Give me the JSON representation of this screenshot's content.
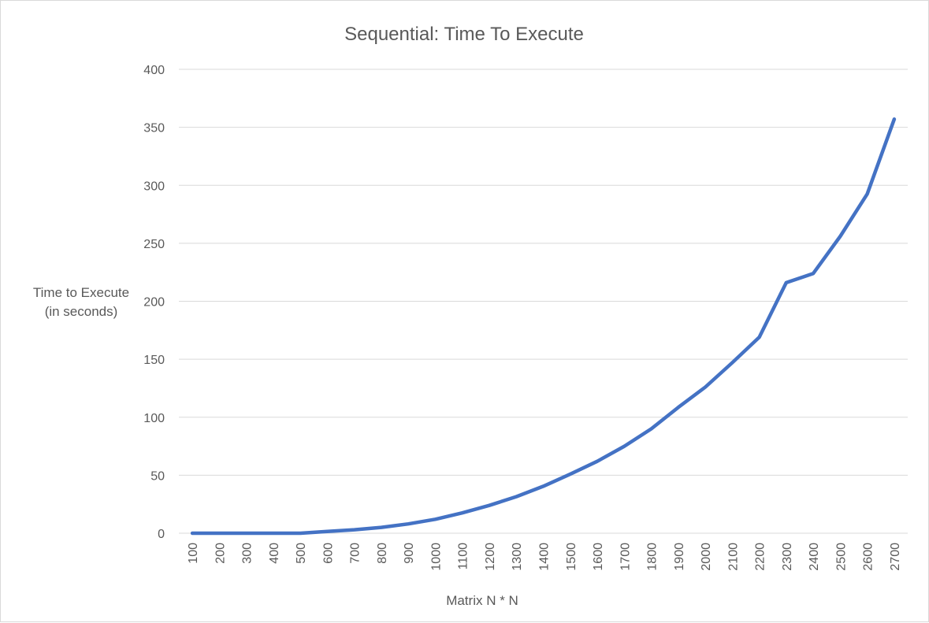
{
  "chart_data": {
    "type": "line",
    "title": "Sequential: Time To Execute",
    "xlabel": "Matrix N * N",
    "ylabel_lines": [
      "Time to Execute",
      "(in seconds)"
    ],
    "categories": [
      "100",
      "200",
      "300",
      "400",
      "500",
      "600",
      "700",
      "800",
      "900",
      "1000",
      "1100",
      "1200",
      "1300",
      "1400",
      "1500",
      "1600",
      "1700",
      "1800",
      "1900",
      "2000",
      "2100",
      "2200",
      "2300",
      "2400",
      "2500",
      "2600",
      "2700"
    ],
    "series": [
      {
        "color": "#4472C4",
        "values": [
          0,
          0,
          0,
          0,
          0,
          1.5,
          3,
          5,
          8,
          12,
          17.5,
          24,
          31.5,
          40.5,
          51,
          62,
          75,
          90,
          108.5,
          126,
          147,
          169,
          216,
          224,
          256,
          292.5,
          357
        ]
      }
    ],
    "ylim": [
      0,
      400
    ],
    "yticks": [
      0,
      50,
      100,
      150,
      200,
      250,
      300,
      350,
      400
    ],
    "grid": true,
    "legend": "none"
  }
}
